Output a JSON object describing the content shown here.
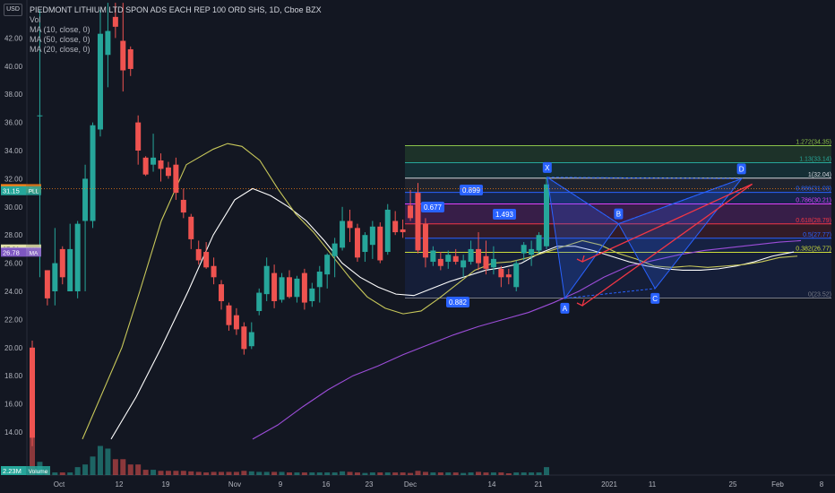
{
  "header": {
    "title": "PIEDMONT LITHIUM LTD SPON ADS EACH REP 100 ORD SHS, 1D, Cboe BZX",
    "currency": "USD",
    "indicators": [
      "Vol",
      "MA (10, close, 0)",
      "MA (50, close, 0)",
      "MA (20, close, 0)"
    ]
  },
  "colors": {
    "background": "#131722",
    "up": "#26a69a",
    "down": "#ef5350",
    "ma10": "#c8c85a",
    "ma20": "#ffffff",
    "ma50": "#9c4dd8",
    "pattern": "#2962ff",
    "projection": "#f23645"
  },
  "chart_data": {
    "type": "candlestick",
    "title": "PIEDMONT LITHIUM LTD SPON ADS EACH REP 100 ORD SHS, 1D, Cboe BZX",
    "ylim": [
      12.7,
      44.5
    ],
    "y_ticks": [
      "14.00",
      "16.00",
      "18.00",
      "20.00",
      "22.00",
      "24.00",
      "26.00",
      "28.00",
      "30.00",
      "32.00",
      "34.00",
      "36.00",
      "38.00",
      "40.00",
      "42.00"
    ],
    "x_ticks": [
      "Oct",
      "5",
      "12",
      "19",
      "Nov",
      "9",
      "16",
      "23",
      "Dec",
      "7",
      "14",
      "21",
      "2021",
      "11",
      "25",
      "Feb",
      "8"
    ],
    "candles": [
      {
        "d": "Sep 25",
        "o": 20,
        "h": 20.5,
        "l": 13,
        "c": 13.6,
        "v": 2.2
      },
      {
        "d": "Sep 28",
        "o": 36.5,
        "h": 44,
        "l": 25,
        "c": 36.5,
        "v": 0.25
      },
      {
        "d": "Sep 29",
        "o": 25.5,
        "h": 25.5,
        "l": 23,
        "c": 23.5,
        "v": 0.1
      },
      {
        "d": "Sep 30",
        "o": 24,
        "h": 28.5,
        "l": 23,
        "c": 26,
        "v": 0.05
      },
      {
        "d": "Oct 1",
        "o": 27,
        "h": 27.2,
        "l": 24.5,
        "c": 25,
        "v": 0.05
      },
      {
        "d": "Oct 2",
        "o": 24,
        "h": 28.8,
        "l": 24,
        "c": 27,
        "v": 0.05
      },
      {
        "d": "Oct 5",
        "o": 24,
        "h": 29,
        "l": 23.5,
        "c": 28.8,
        "v": 0.15
      },
      {
        "d": "Oct 6",
        "o": 29,
        "h": 33,
        "l": 24,
        "c": 32,
        "v": 0.2
      },
      {
        "d": "Oct 7",
        "o": 29,
        "h": 36,
        "l": 28.5,
        "c": 35.8,
        "v": 0.35
      },
      {
        "d": "Oct 8",
        "o": 35.5,
        "h": 44,
        "l": 35,
        "c": 42.3,
        "v": 0.55
      },
      {
        "d": "Oct 9",
        "o": 40.8,
        "h": 44.5,
        "l": 38.5,
        "c": 42.5,
        "v": 0.5
      },
      {
        "d": "Oct 12",
        "o": 43.5,
        "h": 44.5,
        "l": 42,
        "c": 42.8,
        "v": 0.3
      },
      {
        "d": "Oct 13",
        "o": 41.8,
        "h": 44.5,
        "l": 38.2,
        "c": 39.7,
        "v": 0.3
      },
      {
        "d": "Oct 14",
        "o": 41.2,
        "h": 41.4,
        "l": 39.3,
        "c": 39.8,
        "v": 0.2
      },
      {
        "d": "Oct 15",
        "o": 36,
        "h": 36.5,
        "l": 33,
        "c": 34,
        "v": 0.2
      },
      {
        "d": "Oct 16",
        "o": 33.5,
        "h": 33.6,
        "l": 32.2,
        "c": 32.3,
        "v": 0.1
      },
      {
        "d": "Oct 19",
        "o": 33,
        "h": 35.2,
        "l": 32.5,
        "c": 33.5,
        "v": 0.1
      },
      {
        "d": "Oct 20",
        "o": 33.3,
        "h": 33.8,
        "l": 31.8,
        "c": 32.7,
        "v": 0.08
      },
      {
        "d": "Oct 21",
        "o": 32.8,
        "h": 33.2,
        "l": 32,
        "c": 32.2,
        "v": 0.08
      },
      {
        "d": "Oct 22",
        "o": 33,
        "h": 33.5,
        "l": 30.5,
        "c": 31,
        "v": 0.08
      },
      {
        "d": "Oct 23",
        "o": 30.5,
        "h": 31.3,
        "l": 29.2,
        "c": 29.6,
        "v": 0.08
      },
      {
        "d": "Oct 26",
        "o": 29.3,
        "h": 29.5,
        "l": 27,
        "c": 27.7,
        "v": 0.07
      },
      {
        "d": "Oct 27",
        "o": 27,
        "h": 27.6,
        "l": 25.9,
        "c": 26.2,
        "v": 0.06
      },
      {
        "d": "Oct 28",
        "o": 26.8,
        "h": 27.5,
        "l": 25.6,
        "c": 25.7,
        "v": 0.05
      },
      {
        "d": "Oct 29",
        "o": 25.8,
        "h": 26.4,
        "l": 24.5,
        "c": 25,
        "v": 0.06
      },
      {
        "d": "Oct 30",
        "o": 24.5,
        "h": 24.8,
        "l": 22.7,
        "c": 23.3,
        "v": 0.06
      },
      {
        "d": "Nov 2",
        "o": 23,
        "h": 23.2,
        "l": 21.2,
        "c": 21.6,
        "v": 0.06
      },
      {
        "d": "Nov 3",
        "o": 22.3,
        "h": 22.8,
        "l": 20.9,
        "c": 21.3,
        "v": 0.06
      },
      {
        "d": "Nov 4",
        "o": 21.5,
        "h": 21.8,
        "l": 19.5,
        "c": 19.9,
        "v": 0.08
      },
      {
        "d": "Nov 5",
        "o": 20.1,
        "h": 21.8,
        "l": 19.9,
        "c": 21.1,
        "v": 0.07
      },
      {
        "d": "Nov 6",
        "o": 22.6,
        "h": 24.2,
        "l": 22.3,
        "c": 23.9,
        "v": 0.06
      },
      {
        "d": "Nov 9",
        "o": 23.8,
        "h": 26.4,
        "l": 23.3,
        "c": 25.8,
        "v": 0.06
      },
      {
        "d": "Nov 10",
        "o": 25.3,
        "h": 25.9,
        "l": 22.8,
        "c": 23.3,
        "v": 0.06
      },
      {
        "d": "Nov 11",
        "o": 23.4,
        "h": 25.3,
        "l": 23.2,
        "c": 25,
        "v": 0.06
      },
      {
        "d": "Nov 12",
        "o": 25,
        "h": 25.5,
        "l": 23.5,
        "c": 23.6,
        "v": 0.05
      },
      {
        "d": "Nov 13",
        "o": 23.6,
        "h": 25.1,
        "l": 23.2,
        "c": 24.9,
        "v": 0.05
      },
      {
        "d": "Nov 16",
        "o": 25.3,
        "h": 25.6,
        "l": 22.7,
        "c": 23.2,
        "v": 0.05
      },
      {
        "d": "Nov 17",
        "o": 23.3,
        "h": 24.6,
        "l": 22.9,
        "c": 24.2,
        "v": 0.05
      },
      {
        "d": "Nov 18",
        "o": 24.3,
        "h": 25.8,
        "l": 23.2,
        "c": 25.4,
        "v": 0.05
      },
      {
        "d": "Nov 19",
        "o": 25.2,
        "h": 26.7,
        "l": 24.2,
        "c": 26.6,
        "v": 0.05
      },
      {
        "d": "Nov 20",
        "o": 26.5,
        "h": 27.8,
        "l": 25,
        "c": 27.4,
        "v": 0.05
      },
      {
        "d": "Nov 23",
        "o": 27.1,
        "h": 30,
        "l": 26.9,
        "c": 29,
        "v": 0.07
      },
      {
        "d": "Nov 24",
        "o": 29,
        "h": 29.8,
        "l": 27.5,
        "c": 28.5,
        "v": 0.06
      },
      {
        "d": "Nov 25",
        "o": 28.5,
        "h": 28.8,
        "l": 26.1,
        "c": 26.4,
        "v": 0.05
      },
      {
        "d": "Nov 27",
        "o": 26.8,
        "h": 28.2,
        "l": 26.1,
        "c": 28,
        "v": 0.04
      },
      {
        "d": "Nov 30",
        "o": 27.3,
        "h": 29,
        "l": 26.3,
        "c": 28.6,
        "v": 0.05
      },
      {
        "d": "Dec 1",
        "o": 28.6,
        "h": 28.9,
        "l": 26,
        "c": 26.2,
        "v": 0.05
      },
      {
        "d": "Dec 2",
        "o": 26.8,
        "h": 30.2,
        "l": 26.6,
        "c": 29.8,
        "v": 0.05
      },
      {
        "d": "Dec 3",
        "o": 29,
        "h": 29.7,
        "l": 28,
        "c": 28.2,
        "v": 0.05
      },
      {
        "d": "Dec 4",
        "o": 28.4,
        "h": 29.1,
        "l": 27.8,
        "c": 28.2,
        "v": 0.05
      },
      {
        "d": "Dec 7",
        "o": 30.1,
        "h": 31.2,
        "l": 29,
        "c": 29.2,
        "v": 0.04
      },
      {
        "d": "Dec 8",
        "o": 31,
        "h": 31.7,
        "l": 26.7,
        "c": 26.9,
        "v": 0.08
      },
      {
        "d": "Dec 9",
        "o": 28.8,
        "h": 29.2,
        "l": 25.7,
        "c": 26.4,
        "v": 0.06
      },
      {
        "d": "Dec 10",
        "o": 26.1,
        "h": 27.2,
        "l": 25.8,
        "c": 26.9,
        "v": 0.05
      },
      {
        "d": "Dec 11",
        "o": 26.3,
        "h": 26.8,
        "l": 25.5,
        "c": 25.8,
        "v": 0.05
      },
      {
        "d": "Dec 14",
        "o": 26.1,
        "h": 26.9,
        "l": 25.6,
        "c": 26.6,
        "v": 0.05
      },
      {
        "d": "Dec 15",
        "o": 26.5,
        "h": 27,
        "l": 25.9,
        "c": 26.1,
        "v": 0.05
      },
      {
        "d": "Dec 16",
        "o": 25.7,
        "h": 26.6,
        "l": 25,
        "c": 26.2,
        "v": 0.04
      },
      {
        "d": "Dec 17",
        "o": 26.1,
        "h": 27.6,
        "l": 25.9,
        "c": 27,
        "v": 0.05
      },
      {
        "d": "Dec 18",
        "o": 27,
        "h": 28.2,
        "l": 25.5,
        "c": 26,
        "v": 0.06
      },
      {
        "d": "Dec 21",
        "o": 26.5,
        "h": 27.6,
        "l": 25.2,
        "c": 25.6,
        "v": 0.05
      },
      {
        "d": "Dec 22",
        "o": 25.7,
        "h": 27.2,
        "l": 25.2,
        "c": 26.3,
        "v": 0.05
      },
      {
        "d": "Dec 23",
        "o": 25.6,
        "h": 25.8,
        "l": 24.3,
        "c": 25,
        "v": 0.05
      },
      {
        "d": "Dec 24",
        "o": 25.2,
        "h": 25.6,
        "l": 24.5,
        "c": 25,
        "v": 0.03
      },
      {
        "d": "Dec 28",
        "o": 24.3,
        "h": 26.2,
        "l": 24,
        "c": 26,
        "v": 0.05
      },
      {
        "d": "Dec 29",
        "o": 26.7,
        "h": 27.5,
        "l": 26.2,
        "c": 27.3,
        "v": 0.05
      },
      {
        "d": "Dec 30",
        "o": 26.6,
        "h": 27.6,
        "l": 25.8,
        "c": 27,
        "v": 0.05
      },
      {
        "d": "Dec 31",
        "o": 26.9,
        "h": 28.2,
        "l": 26.7,
        "c": 28,
        "v": 0.05
      },
      {
        "d": "Jan 4",
        "o": 27.2,
        "h": 32.1,
        "l": 27,
        "c": 31.6,
        "v": 0.15
      }
    ],
    "ma10": [
      [
        15.5,
        13.5
      ],
      [
        26.5,
        20
      ],
      [
        31.5,
        24
      ],
      [
        37.5,
        29
      ],
      [
        44.5,
        33
      ],
      [
        52,
        34.1
      ],
      [
        56,
        34.5
      ],
      [
        60,
        34.3
      ],
      [
        65,
        33.3
      ],
      [
        70,
        31.3
      ],
      [
        75,
        29.5
      ],
      [
        80,
        28.2
      ],
      [
        85,
        26.6
      ],
      [
        90,
        25
      ],
      [
        95,
        23.6
      ],
      [
        100,
        22.8
      ],
      [
        105,
        22.4
      ],
      [
        110,
        22.6
      ],
      [
        115,
        23.5
      ],
      [
        120,
        24.5
      ],
      [
        125,
        25.5
      ],
      [
        130,
        26
      ],
      [
        135,
        26.1
      ],
      [
        140,
        26.4
      ],
      [
        145,
        26.8
      ],
      [
        150,
        27.2
      ],
      [
        155,
        27.6
      ],
      [
        160,
        27.3
      ],
      [
        165,
        26.7
      ],
      [
        170,
        26.3
      ],
      [
        175,
        25.8
      ],
      [
        180,
        25.7
      ],
      [
        185,
        25.8
      ],
      [
        190,
        25.7
      ],
      [
        195,
        25.8
      ],
      [
        200,
        25.9
      ],
      [
        205,
        26.1
      ],
      [
        210,
        26.4
      ],
      [
        215,
        26.5
      ]
    ],
    "ma20": [
      [
        23.5,
        13.5
      ],
      [
        30.5,
        16.5
      ],
      [
        37.5,
        20
      ],
      [
        45,
        24
      ],
      [
        52,
        28
      ],
      [
        58,
        30.5
      ],
      [
        63,
        31.3
      ],
      [
        68,
        30.8
      ],
      [
        73,
        30
      ],
      [
        78,
        29
      ],
      [
        83,
        27.6
      ],
      [
        88,
        26
      ],
      [
        93,
        25
      ],
      [
        98,
        24.3
      ],
      [
        103,
        23.8
      ],
      [
        108,
        23.7
      ],
      [
        113,
        24.2
      ],
      [
        118,
        24.7
      ],
      [
        123,
        25.1
      ],
      [
        128,
        25.5
      ],
      [
        133,
        25.7
      ],
      [
        138,
        26
      ],
      [
        143,
        26.7
      ],
      [
        148,
        27.2
      ],
      [
        153,
        27.2
      ],
      [
        158,
        26.9
      ],
      [
        163,
        26.5
      ],
      [
        168,
        26.1
      ],
      [
        173,
        25.8
      ],
      [
        178,
        25.6
      ],
      [
        183,
        25.5
      ],
      [
        188,
        25.5
      ],
      [
        193,
        25.6
      ],
      [
        198,
        25.8
      ],
      [
        203,
        26.1
      ],
      [
        208,
        26.5
      ],
      [
        214,
        26.8
      ]
    ],
    "ma50": [
      [
        63,
        13.5
      ],
      [
        70,
        14.5
      ],
      [
        77,
        15.8
      ],
      [
        84,
        17
      ],
      [
        91,
        18
      ],
      [
        98,
        18.7
      ],
      [
        105,
        19.5
      ],
      [
        112,
        20.2
      ],
      [
        119,
        20.9
      ],
      [
        126,
        21.5
      ],
      [
        133,
        22
      ],
      [
        140,
        22.5
      ],
      [
        147,
        23.2
      ],
      [
        154,
        24
      ],
      [
        161,
        25
      ],
      [
        168,
        25.8
      ],
      [
        175,
        26.2
      ],
      [
        182,
        26.6
      ],
      [
        189,
        26.9
      ],
      [
        196,
        27.1
      ],
      [
        203,
        27.3
      ],
      [
        210,
        27.5
      ],
      [
        216,
        27.6
      ]
    ],
    "pattern": {
      "name": "Bat",
      "points": [
        {
          "label": "X",
          "t": 145.2,
          "p": 32.1
        },
        {
          "label": "A",
          "t": 150.1,
          "p": 23.5
        },
        {
          "label": "B",
          "t": 165.1,
          "p": 28.8
        },
        {
          "label": "C",
          "t": 175.3,
          "p": 24.2
        },
        {
          "label": "D",
          "t": 199.4,
          "p": 32.0
        }
      ],
      "ratios": [
        "0.677",
        "0.882",
        "0.899",
        "1.493"
      ]
    },
    "fib_levels": [
      {
        "label": "1.272(34.35)",
        "p": 34.35,
        "color": "#8bc34a"
      },
      {
        "label": "1.13(33.14)",
        "p": 33.14,
        "color": "#26a69a"
      },
      {
        "label": "1(32.04)",
        "p": 32.04,
        "color": "#d1d4dc"
      },
      {
        "label": "0.886(31.03)",
        "p": 31.03,
        "color": "#2962ff"
      },
      {
        "label": "0.786(30.21)",
        "p": 30.21,
        "color": "#e040fb"
      },
      {
        "label": "0.618(28.79)",
        "p": 28.79,
        "color": "#f23645"
      },
      {
        "label": "0.5(27.77)",
        "p": 27.77,
        "color": "#2962ff"
      },
      {
        "label": "0.382(26.77)",
        "p": 26.77,
        "color": "#cddc39"
      },
      {
        "label": "0(23.52)",
        "p": 23.52,
        "color": "#787b86"
      }
    ],
    "price_tags": [
      {
        "text": "31.30",
        "suffix": "Pre",
        "p": 31.3,
        "bg": "#f57f17"
      },
      {
        "text": "31.15",
        "suffix": "PLL",
        "p": 31.15,
        "bg": "#26a69a"
      },
      {
        "text": "27.01",
        "suffix": "MA",
        "p": 27.01,
        "bg": "#e0e0a8"
      },
      {
        "text": "26.81",
        "suffix": "MA",
        "p": 26.81,
        "bg": "#f0f0f0"
      },
      {
        "text": "26.78",
        "suffix": "MA",
        "p": 26.78,
        "bg": "#7e57c2"
      }
    ],
    "volume_tag": {
      "text": "2.23M",
      "suffix": "Volume"
    }
  }
}
